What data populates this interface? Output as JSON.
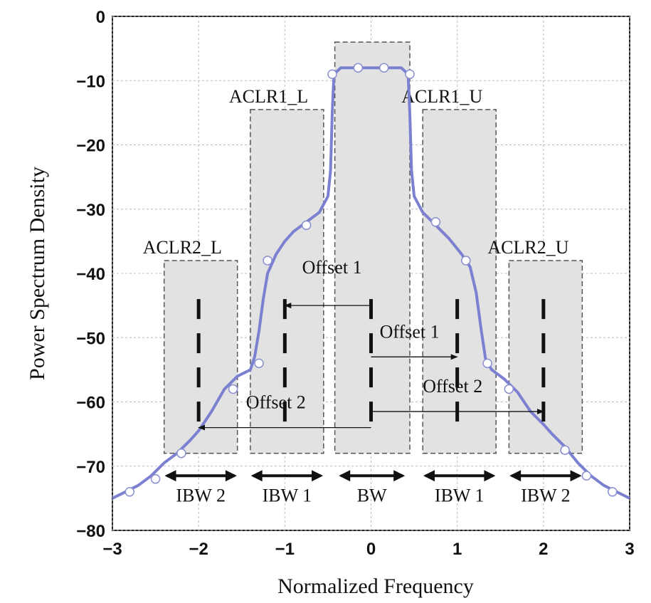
{
  "chart_data": {
    "type": "line",
    "title": "",
    "xlabel": "Normalized Frequency",
    "ylabel": "Power Spectrum Density",
    "xlim": [
      -3,
      3
    ],
    "ylim": [
      -80,
      0
    ],
    "x_ticks": [
      -3,
      -2,
      -1,
      0,
      1,
      2,
      3
    ],
    "y_ticks": [
      0,
      -10,
      -20,
      -30,
      -40,
      -50,
      -60,
      -70,
      -80
    ],
    "x_tick_labels": [
      "−3",
      "−2",
      "−1",
      "0",
      "1",
      "2",
      "3"
    ],
    "y_tick_labels": [
      "0",
      "−10",
      "−20",
      "−30",
      "−40",
      "−50",
      "−60",
      "−70",
      "−80"
    ],
    "grid": true,
    "series": [
      {
        "color": "#7b80d0",
        "points": [
          [
            -3.0,
            -75
          ],
          [
            -2.85,
            -74
          ],
          [
            -2.7,
            -73
          ],
          [
            -2.55,
            -71.5
          ],
          [
            -2.4,
            -69.5
          ],
          [
            -2.25,
            -68
          ],
          [
            -2.1,
            -66
          ],
          [
            -2.0,
            -64.5
          ],
          [
            -1.85,
            -61.5
          ],
          [
            -1.7,
            -58
          ],
          [
            -1.55,
            -56
          ],
          [
            -1.4,
            -55
          ],
          [
            -1.35,
            -53
          ],
          [
            -1.3,
            -49
          ],
          [
            -1.25,
            -44
          ],
          [
            -1.2,
            -40
          ],
          [
            -1.1,
            -37
          ],
          [
            -1.0,
            -35
          ],
          [
            -0.9,
            -33.5
          ],
          [
            -0.75,
            -32
          ],
          [
            -0.6,
            -30.5
          ],
          [
            -0.5,
            -28
          ],
          [
            -0.47,
            -24
          ],
          [
            -0.45,
            -15
          ],
          [
            -0.43,
            -9
          ],
          [
            -0.35,
            -8
          ],
          [
            -0.15,
            -8
          ],
          [
            0.0,
            -8
          ],
          [
            0.15,
            -8
          ],
          [
            0.35,
            -8
          ],
          [
            0.43,
            -9
          ],
          [
            0.45,
            -15
          ],
          [
            0.47,
            -24
          ],
          [
            0.5,
            -28
          ],
          [
            0.6,
            -30.5
          ],
          [
            0.75,
            -32.5
          ],
          [
            0.9,
            -34.5
          ],
          [
            1.05,
            -37
          ],
          [
            1.15,
            -39
          ],
          [
            1.22,
            -43
          ],
          [
            1.28,
            -49
          ],
          [
            1.33,
            -53.5
          ],
          [
            1.4,
            -55
          ],
          [
            1.55,
            -56.5
          ],
          [
            1.7,
            -58.5
          ],
          [
            1.85,
            -61.5
          ],
          [
            2.0,
            -63.5
          ],
          [
            2.1,
            -65
          ],
          [
            2.25,
            -67
          ],
          [
            2.4,
            -69.5
          ],
          [
            2.55,
            -71.5
          ],
          [
            2.7,
            -73
          ],
          [
            2.85,
            -74
          ],
          [
            3.0,
            -75
          ]
        ],
        "markers": [
          [
            -2.8,
            -74
          ],
          [
            -2.5,
            -72
          ],
          [
            -2.2,
            -68
          ],
          [
            -1.6,
            -58
          ],
          [
            -1.3,
            -54
          ],
          [
            -1.2,
            -38
          ],
          [
            -0.75,
            -32.5
          ],
          [
            -0.45,
            -9
          ],
          [
            -0.15,
            -8
          ],
          [
            0.15,
            -8
          ],
          [
            0.45,
            -9
          ],
          [
            0.75,
            -32
          ],
          [
            1.1,
            -38
          ],
          [
            1.35,
            -54
          ],
          [
            1.6,
            -58
          ],
          [
            2.25,
            -67.5
          ],
          [
            2.5,
            -71.5
          ],
          [
            2.8,
            -74
          ]
        ]
      }
    ],
    "regions": [
      {
        "label": "ACLR2_L",
        "x": [
          -2.4,
          -1.55
        ],
        "y": [
          -68,
          -38
        ],
        "label_pos": "top-left"
      },
      {
        "label": "ACLR1_L",
        "x": [
          -1.4,
          -0.55
        ],
        "y": [
          -68,
          -14.5
        ],
        "label_pos": "top-left"
      },
      {
        "label": "",
        "x": [
          -0.42,
          0.45
        ],
        "y": [
          -68,
          -4
        ],
        "label_pos": "none"
      },
      {
        "label": "ACLR1_U",
        "x": [
          0.6,
          1.45
        ],
        "y": [
          -68,
          -14.5
        ],
        "label_pos": "top-left"
      },
      {
        "label": "ACLR2_U",
        "x": [
          1.6,
          2.45
        ],
        "y": [
          -68,
          -38
        ],
        "label_pos": "top-left"
      }
    ],
    "center_marks": [
      -2,
      -1,
      0,
      1,
      2
    ],
    "offset_arrows": [
      {
        "label": "Offset 1",
        "from": 0,
        "to": -1,
        "y": -45,
        "label_x": -0.8,
        "label_y": -40
      },
      {
        "label": "Offset 1",
        "from": 0,
        "to": 1,
        "y": -53,
        "label_x": 0.1,
        "label_y": -50
      },
      {
        "label": "Offset 2",
        "from": 0,
        "to": -2,
        "y": -64,
        "label_x": -1.45,
        "label_y": -61
      },
      {
        "label": "Offset 2",
        "from": 0,
        "to": 2,
        "y": -61.5,
        "label_x": 0.6,
        "label_y": -58.5
      }
    ],
    "bandwidth_arrows": [
      {
        "label": "IBW 2",
        "x": [
          -2.4,
          -1.55
        ]
      },
      {
        "label": "IBW 1",
        "x": [
          -1.4,
          -0.55
        ]
      },
      {
        "label": "BW",
        "x": [
          -0.38,
          0.4
        ]
      },
      {
        "label": "IBW 1",
        "x": [
          0.6,
          1.45
        ]
      },
      {
        "label": "IBW 2",
        "x": [
          1.6,
          2.45
        ]
      }
    ],
    "bandwidth_arrow_y": -71.5,
    "bandwidth_label_y": -74.5
  }
}
